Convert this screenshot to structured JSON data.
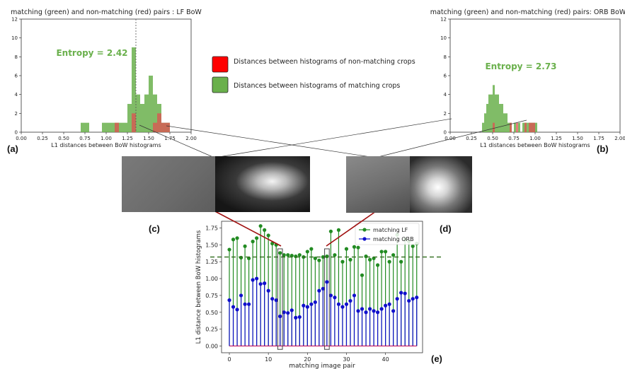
{
  "panels": {
    "a": "(a)",
    "b": "(b)",
    "c": "(c)",
    "d": "(d)",
    "e": "(e)"
  },
  "legend_center": {
    "red_label": "Distances between histograms of  non-matching crops",
    "green_label": "Distances between histograms of matching crops",
    "red_color": "#ff0000",
    "green_color": "#6ab04c"
  },
  "chart_data": [
    {
      "id": "a",
      "type": "bar",
      "title": "matching (green) and non-matching (red) pairs : LF BoW",
      "xlabel": "L1 distances between BoW histograms",
      "ylabel": "",
      "xlim": [
        0,
        2.0
      ],
      "ylim": [
        0,
        12
      ],
      "xticks": [
        "0.00",
        "0.25",
        "0.50",
        "0.75",
        "1.00",
        "1.25",
        "1.50",
        "1.75",
        "2.00"
      ],
      "yticks": [
        "0",
        "2",
        "4",
        "6",
        "8",
        "10",
        "12"
      ],
      "annotation": "Entropy = 2.42",
      "vline": 1.35,
      "bin_width": 0.05,
      "series": [
        {
          "color": "#6ab04c",
          "bins": [
            [
              0.7,
              1
            ],
            [
              0.75,
              1
            ],
            [
              0.95,
              1
            ],
            [
              1.0,
              1
            ],
            [
              1.05,
              1
            ],
            [
              1.1,
              1
            ],
            [
              1.15,
              1
            ],
            [
              1.2,
              1
            ],
            [
              1.25,
              3
            ],
            [
              1.3,
              9
            ],
            [
              1.35,
              4
            ],
            [
              1.4,
              3
            ],
            [
              1.45,
              4
            ],
            [
              1.5,
              6
            ],
            [
              1.55,
              4
            ],
            [
              1.6,
              3
            ],
            [
              1.65,
              1
            ],
            [
              1.7,
              1
            ]
          ]
        },
        {
          "color": "#e05050",
          "bins": [
            [
              1.1,
              1
            ],
            [
              1.3,
              2
            ],
            [
              1.55,
              1
            ],
            [
              1.6,
              2
            ],
            [
              1.65,
              1
            ],
            [
              1.7,
              1
            ]
          ]
        }
      ]
    },
    {
      "id": "b",
      "type": "bar",
      "title": "matching (green) and non-matching (red) pairs: ORB BoW",
      "xlabel": "L1 distances between BoW histograms",
      "ylabel": "",
      "xlim": [
        0,
        2.0
      ],
      "ylim": [
        0,
        12
      ],
      "xticks": [
        "0.00",
        "0.25",
        "0.50",
        "0.75",
        "1.00",
        "1.25",
        "1.50",
        "1.75",
        "2.00"
      ],
      "yticks": [
        "0",
        "2",
        "4",
        "6",
        "8",
        "10",
        "12"
      ],
      "annotation": "Entropy = 2.73",
      "bin_width": 0.025,
      "series": [
        {
          "color": "#6ab04c",
          "bins": [
            [
              0.375,
              1
            ],
            [
              0.4,
              2
            ],
            [
              0.425,
              3
            ],
            [
              0.45,
              4
            ],
            [
              0.475,
              4
            ],
            [
              0.5,
              5
            ],
            [
              0.525,
              4
            ],
            [
              0.55,
              4
            ],
            [
              0.575,
              3
            ],
            [
              0.6,
              3
            ],
            [
              0.625,
              2
            ],
            [
              0.65,
              2
            ],
            [
              0.675,
              1
            ],
            [
              0.7,
              1
            ],
            [
              0.75,
              1
            ],
            [
              0.8,
              1
            ],
            [
              0.85,
              1
            ],
            [
              0.875,
              1
            ],
            [
              0.9,
              1
            ],
            [
              0.925,
              1
            ],
            [
              0.95,
              1
            ],
            [
              0.975,
              1
            ],
            [
              1.0,
              1
            ]
          ]
        },
        {
          "color": "#e05050",
          "bins": [
            [
              0.5,
              1
            ],
            [
              0.7,
              1
            ],
            [
              0.775,
              1
            ],
            [
              0.875,
              1
            ],
            [
              0.925,
              1
            ],
            [
              0.95,
              1
            ],
            [
              0.975,
              1
            ]
          ]
        }
      ]
    },
    {
      "id": "e",
      "type": "scatter",
      "title": "",
      "xlabel": "matching image pair",
      "ylabel": "L1 distance between BoW histograms",
      "xlim": [
        -2,
        49.5
      ],
      "ylim": [
        -0.1,
        1.85
      ],
      "xticks": [
        "0",
        "10",
        "20",
        "30",
        "40"
      ],
      "yticks": [
        "0.00",
        "0.25",
        "0.50",
        "0.75",
        "1.00",
        "1.25",
        "1.50",
        "1.75"
      ],
      "threshold": 1.32,
      "legend": [
        "matching LF",
        "matching ORB"
      ],
      "series": [
        {
          "name": "matching LF",
          "color": "#228b22",
          "values": [
            1.43,
            1.58,
            1.6,
            1.31,
            1.48,
            1.3,
            1.55,
            1.6,
            1.78,
            1.72,
            1.64,
            1.52,
            1.5,
            1.38,
            1.35,
            1.35,
            1.34,
            1.33,
            1.35,
            1.32,
            1.4,
            1.44,
            1.3,
            1.27,
            1.32,
            1.33,
            1.7,
            1.35,
            1.72,
            1.25,
            1.44,
            1.28,
            1.47,
            1.46,
            1.05,
            1.33,
            1.28,
            1.3,
            1.2,
            1.4,
            1.4,
            1.25,
            1.35,
            1.65,
            1.25,
            1.58,
            1.55,
            1.48,
            1.52
          ]
        },
        {
          "name": "matching ORB",
          "color": "#1010cc",
          "values": [
            0.68,
            0.58,
            0.54,
            0.75,
            0.62,
            0.62,
            0.98,
            1.0,
            0.92,
            0.93,
            0.82,
            0.7,
            0.68,
            0.44,
            0.5,
            0.49,
            0.53,
            0.42,
            0.43,
            0.6,
            0.58,
            0.62,
            0.65,
            0.82,
            0.85,
            0.95,
            0.75,
            0.72,
            0.62,
            0.58,
            0.62,
            0.67,
            0.75,
            0.52,
            0.55,
            0.5,
            0.55,
            0.52,
            0.5,
            0.55,
            0.6,
            0.62,
            0.52,
            0.7,
            0.79,
            0.78,
            0.67,
            0.7,
            0.72
          ]
        }
      ]
    }
  ]
}
